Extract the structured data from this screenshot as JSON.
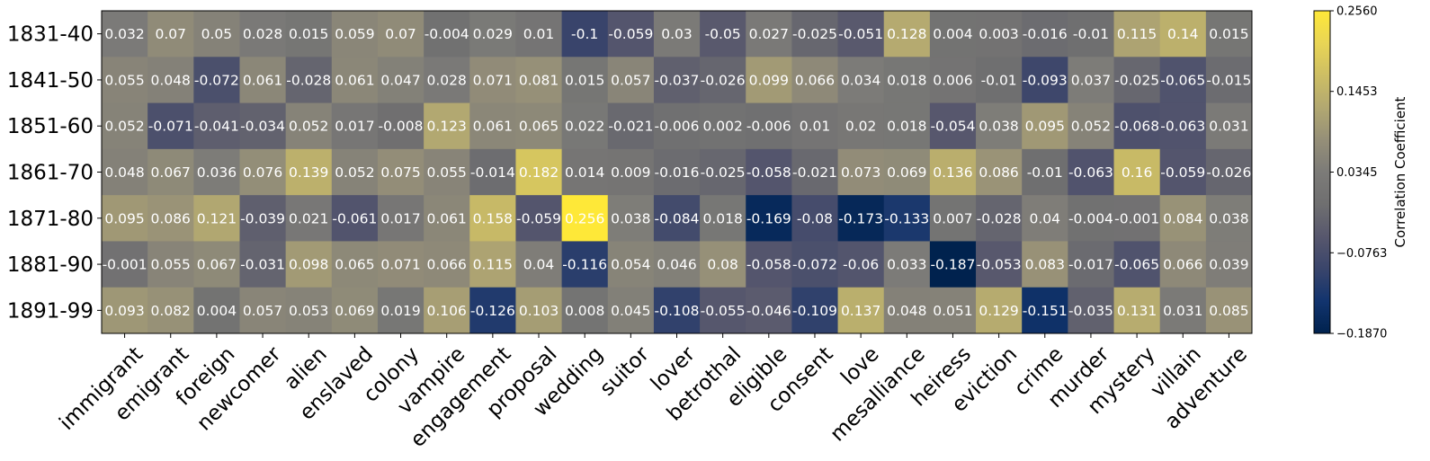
{
  "chart_data": {
    "type": "heatmap",
    "colormap": "cividis",
    "rows": [
      "1831-40",
      "1841-50",
      "1851-60",
      "1861-70",
      "1871-80",
      "1881-90",
      "1891-99"
    ],
    "columns": [
      "immigrant",
      "emigrant",
      "foreign",
      "newcomer",
      "alien",
      "enslaved",
      "colony",
      "vampire",
      "engagement",
      "proposal",
      "wedding",
      "suitor",
      "lover",
      "betrothal",
      "eligible",
      "consent",
      "love",
      "mesalliance",
      "heiress",
      "eviction",
      "crime",
      "murder",
      "mystery",
      "villain",
      "adventure"
    ],
    "values": [
      [
        0.032,
        0.07,
        0.05,
        0.028,
        0.015,
        0.059,
        0.07,
        -0.004,
        0.029,
        0.01,
        -0.1,
        -0.059,
        0.03,
        -0.05,
        0.027,
        -0.025,
        -0.051,
        0.128,
        0.004,
        0.003,
        -0.016,
        -0.01,
        0.115,
        0.14,
        0.015
      ],
      [
        0.055,
        0.048,
        -0.072,
        0.061,
        -0.028,
        0.061,
        0.047,
        0.028,
        0.071,
        0.081,
        0.015,
        0.057,
        -0.037,
        -0.026,
        0.099,
        0.066,
        0.034,
        0.018,
        0.006,
        -0.01,
        -0.093,
        0.037,
        -0.025,
        -0.065,
        -0.015
      ],
      [
        0.052,
        -0.071,
        -0.041,
        -0.034,
        0.052,
        0.017,
        -0.008,
        0.123,
        0.061,
        0.065,
        0.022,
        -0.021,
        -0.006,
        0.002,
        -0.006,
        0.01,
        0.02,
        0.018,
        -0.054,
        0.038,
        0.095,
        0.052,
        -0.068,
        -0.063,
        0.031
      ],
      [
        0.048,
        0.067,
        0.036,
        0.076,
        0.139,
        0.052,
        0.075,
        0.055,
        -0.014,
        0.182,
        0.014,
        0.009,
        -0.016,
        -0.025,
        -0.058,
        -0.021,
        0.073,
        0.069,
        0.136,
        0.086,
        -0.01,
        -0.063,
        0.16,
        -0.059,
        -0.026
      ],
      [
        0.095,
        0.086,
        0.121,
        -0.039,
        0.021,
        -0.061,
        0.017,
        0.061,
        0.158,
        -0.059,
        0.256,
        0.038,
        -0.084,
        0.018,
        -0.169,
        -0.08,
        -0.173,
        -0.133,
        0.007,
        -0.028,
        0.04,
        -0.004,
        -0.001,
        0.084,
        0.038
      ],
      [
        -0.001,
        0.055,
        0.067,
        -0.031,
        0.098,
        0.065,
        0.071,
        0.066,
        0.115,
        0.04,
        -0.116,
        0.054,
        0.046,
        0.08,
        -0.058,
        -0.072,
        -0.06,
        0.033,
        -0.187,
        -0.053,
        0.083,
        -0.017,
        -0.065,
        0.066,
        0.039
      ],
      [
        0.093,
        0.082,
        0.004,
        0.057,
        0.053,
        0.069,
        0.019,
        0.106,
        -0.126,
        0.103,
        0.008,
        0.045,
        -0.108,
        -0.055,
        -0.046,
        -0.109,
        0.137,
        0.048,
        0.051,
        0.129,
        -0.151,
        -0.035,
        0.131,
        0.031,
        0.085
      ]
    ],
    "colorbar": {
      "label": "Correlation Coefficient",
      "min": -0.187,
      "max": 0.256,
      "ticks": [
        -0.187,
        -0.0763,
        0.0345,
        0.1453,
        0.256
      ],
      "tick_labels": [
        "−0.1870",
        "−0.0763",
        "0.0345",
        "0.1453",
        "0.2560"
      ]
    }
  }
}
